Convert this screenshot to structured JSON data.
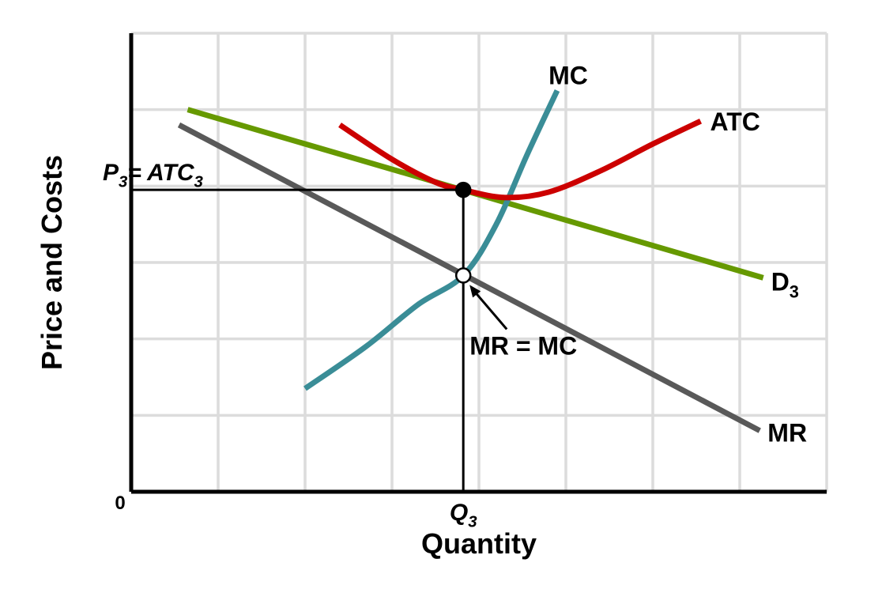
{
  "chart_data": {
    "type": "line",
    "title": "",
    "xlabel": "Quantity",
    "ylabel": "Price and Costs",
    "origin_label": "0",
    "xlim": [
      0,
      8
    ],
    "ylim": [
      0,
      6
    ],
    "grid": true,
    "x_tick_label": {
      "base": "Q",
      "sub": "3",
      "x": 3.82
    },
    "y_tick_label": {
      "base": "P",
      "sub": "3",
      "mid": "= ATC",
      "sub2": "3",
      "y": 3.95
    },
    "series": [
      {
        "name": "D",
        "name_sub": "3",
        "color": "#669900",
        "x": [
          0.65,
          7.27
        ],
        "y": [
          5.0,
          2.8
        ]
      },
      {
        "name": "MR",
        "color": "#595959",
        "x": [
          0.55,
          7.23
        ],
        "y": [
          4.8,
          0.8
        ]
      },
      {
        "name": "MC",
        "color": "#3a8d97",
        "x": [
          2.0,
          2.7,
          3.3,
          3.82,
          4.2,
          4.55,
          4.9
        ],
        "y": [
          1.35,
          1.9,
          2.45,
          2.83,
          3.5,
          4.4,
          5.25
        ]
      },
      {
        "name": "ATC",
        "color": "#cc0000",
        "x": [
          2.4,
          3.0,
          3.5,
          3.82,
          4.3,
          4.8,
          5.4,
          6.0,
          6.55
        ],
        "y": [
          4.8,
          4.35,
          4.05,
          3.95,
          3.85,
          3.92,
          4.2,
          4.55,
          4.85
        ]
      }
    ],
    "points": [
      {
        "name": "P3 = ATC3",
        "x": 3.82,
        "y": 3.95,
        "fill": "#000000"
      },
      {
        "name": "MR = MC",
        "x": 3.82,
        "y": 2.83,
        "fill": "#ffffff"
      }
    ],
    "annotations": [
      {
        "text": "MR = MC",
        "x": 3.82,
        "y": 2.83
      }
    ]
  }
}
